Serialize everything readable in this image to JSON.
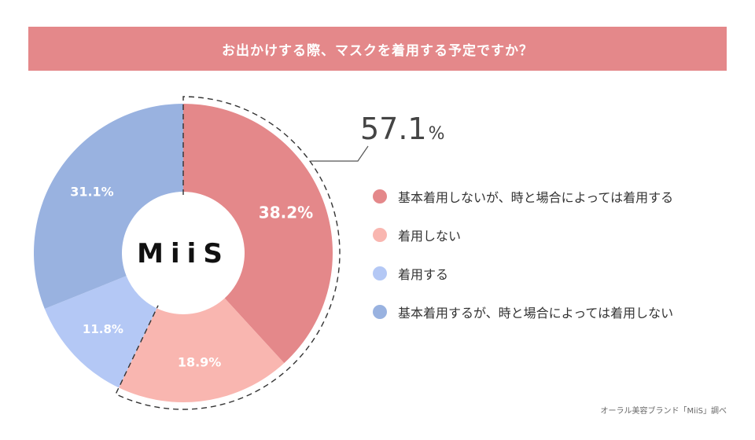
{
  "title": "お出かけする際、マスクを着用する予定ですか？",
  "center_logo": "MiiS",
  "highlight": {
    "value": "57.1",
    "unit": "%"
  },
  "credit": "オーラル美容ブランド「MiiS」調べ",
  "chart_data": {
    "type": "pie",
    "donut": true,
    "categories": [
      "基本着用しないが、時と場合によっては着用する",
      "着用しない",
      "着用する",
      "基本着用するが、時と場合によっては着用しない"
    ],
    "values": [
      38.2,
      18.9,
      11.8,
      31.1
    ],
    "labels": [
      "38.2%",
      "18.9%",
      "11.8%",
      "31.1%"
    ],
    "colors": [
      "#e4888a",
      "#f9b6b0",
      "#b4c8f5",
      "#99b2e0"
    ],
    "legend": "right",
    "highlight_group": {
      "slices": [
        0,
        1
      ],
      "value": 57.1
    }
  }
}
